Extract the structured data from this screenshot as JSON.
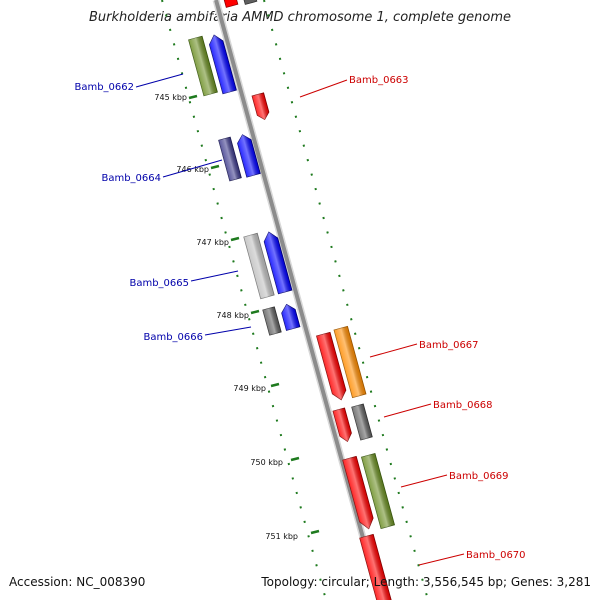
{
  "title": "Burkholderia ambifaria AMMD chromosome 1, complete genome",
  "footer": {
    "accession": "Accession: NC_008390",
    "summary": "Topology: circular; Length: 3,556,545 bp; Genes: 3,281"
  },
  "colors": {
    "backbone": "#8c8c8c",
    "tick_green": "#1e7a1e",
    "label_left": "#0000aa",
    "label_right": "#cc0000",
    "red": "#ff0000",
    "blue": "#0000ff",
    "olive": "#6b8e23",
    "indigo": "#3d3a8c",
    "gray_light": "#bfbfbf",
    "gray_dark": "#5f5f5f",
    "orange": "#ff8c00"
  },
  "position_ticks": [
    "745 kbp",
    "746 kbp",
    "747 kbp",
    "748 kbp",
    "749 kbp",
    "750 kbp",
    "751 kbp"
  ],
  "gene_labels_left": [
    "Bamb_0662",
    "Bamb_0664",
    "Bamb_0665",
    "Bamb_0666"
  ],
  "gene_labels_right": [
    "Bamb_0663",
    "Bamb_0667",
    "Bamb_0668",
    "Bamb_0669",
    "Bamb_0670"
  ]
}
